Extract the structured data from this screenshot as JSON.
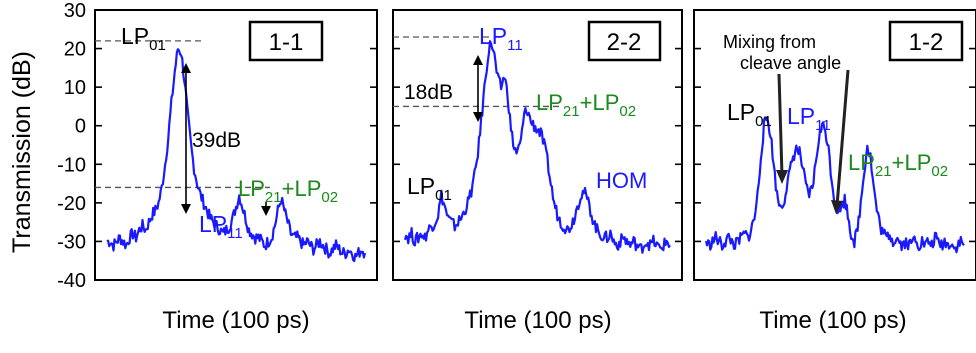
{
  "figure": {
    "ylabel": "Transmission (dB)",
    "yticks": [
      "30",
      "20",
      "10",
      "0",
      "-10",
      "-20",
      "-30",
      "-40"
    ],
    "ylim": [
      -40,
      30
    ]
  },
  "colors": {
    "trace": "#1a1aff",
    "blue_label": "#1a1aff",
    "green_label": "#1a8a1a",
    "black": "#000000",
    "dashed": "#555555"
  },
  "chart_data": [
    {
      "type": "line",
      "panel_label": "1-1",
      "xlabel": "Time (100 ps)",
      "ylim": [
        -40,
        30
      ],
      "series": [
        {
          "values": [
            -30,
            -30,
            -31,
            -30,
            -29,
            -30,
            -31,
            -29,
            -28,
            -29,
            -27,
            -26,
            -27,
            -25,
            -23,
            -22,
            -20,
            -16,
            -10,
            -3,
            6,
            14,
            20,
            19,
            12,
            3,
            -5,
            -11,
            -15,
            -18,
            -20,
            -22,
            -24,
            -25,
            -26,
            -27,
            -28,
            -27,
            -26,
            -24,
            -21,
            -18,
            -21,
            -24,
            -27,
            -28,
            -29,
            -29,
            -30,
            -31,
            -30,
            -29,
            -26,
            -22,
            -19,
            -22,
            -25,
            -28,
            -29,
            -29,
            -30,
            -31,
            -30,
            -31,
            -32,
            -31,
            -30,
            -31,
            -32,
            -33,
            -32,
            -31,
            -32,
            -33,
            -33,
            -32,
            -33,
            -34,
            -33,
            -32,
            -33
          ]
        }
      ],
      "annotations": {
        "peak1": "LP",
        "peak1_sub": "01",
        "peak2": "LP",
        "peak2_sub": "11",
        "peak3a": "LP",
        "peak3a_sub": "21",
        "peak3b": "+LP",
        "peak3b_sub": "02",
        "ratio": "39dB"
      }
    },
    {
      "type": "line",
      "panel_label": "2-2",
      "xlabel": "Time (100 ps)",
      "ylim": [
        -40,
        30
      ],
      "series": [
        {
          "values": [
            -28,
            -29,
            -28,
            -30,
            -29,
            -28,
            -29,
            -27,
            -26,
            -25,
            -23,
            -18,
            -21,
            -24,
            -25,
            -26,
            -25,
            -24,
            -22,
            -20,
            -17,
            -13,
            -7,
            1,
            10,
            18,
            22,
            18,
            12,
            10,
            13,
            8,
            -1,
            -6,
            -7,
            -4,
            3,
            4,
            1,
            0,
            -1,
            -2,
            -5,
            -9,
            -15,
            -20,
            -23,
            -25,
            -26,
            -27,
            -26,
            -24,
            -21,
            -18,
            -17,
            -19,
            -22,
            -25,
            -27,
            -28,
            -29,
            -29,
            -28,
            -30,
            -31,
            -30,
            -29,
            -30,
            -31,
            -30,
            -31,
            -32,
            -31,
            -30,
            -31,
            -30,
            -31,
            -32,
            -31,
            -30,
            -31
          ]
        }
      ],
      "annotations": {
        "peak1": "LP",
        "peak1_sub": "01",
        "peak2": "LP",
        "peak2_sub": "11",
        "peak3a": "LP",
        "peak3a_sub": "21",
        "peak3b": "+LP",
        "peak3b_sub": "02",
        "peak4": "HOM",
        "ratio": "18dB"
      }
    },
    {
      "type": "line",
      "panel_label": "1-2",
      "xlabel": "Time (100 ps)",
      "ylim": [
        -40,
        30
      ],
      "series": [
        {
          "values": [
            -30,
            -31,
            -30,
            -29,
            -30,
            -31,
            -30,
            -29,
            -30,
            -31,
            -30,
            -29,
            -28,
            -29,
            -27,
            -24,
            -18,
            -8,
            0,
            2,
            -2,
            -10,
            -18,
            -21,
            -20,
            -16,
            -12,
            -8,
            -6,
            -7,
            -11,
            -16,
            -18,
            -16,
            -10,
            -3,
            0,
            -1,
            -6,
            -14,
            -20,
            -22,
            -21,
            -19,
            -23,
            -28,
            -30,
            -27,
            -20,
            -12,
            -5,
            -8,
            -16,
            -22,
            -26,
            -28,
            -29,
            -28,
            -30,
            -29,
            -30,
            -31,
            -30,
            -31,
            -30,
            -29,
            -31,
            -30,
            -31,
            -30,
            -31,
            -29,
            -30,
            -31,
            -30,
            -31,
            -30,
            -32,
            -31,
            -30,
            -31
          ]
        }
      ],
      "annotations": {
        "peak1": "LP",
        "peak1_sub": "01",
        "peak2": "LP",
        "peak2_sub": "11",
        "peak3a": "LP",
        "peak3a_sub": "21",
        "peak3b": "+LP",
        "peak3b_sub": "02",
        "mixing_line1": "Mixing from",
        "mixing_line2": "cleave angle"
      }
    }
  ]
}
